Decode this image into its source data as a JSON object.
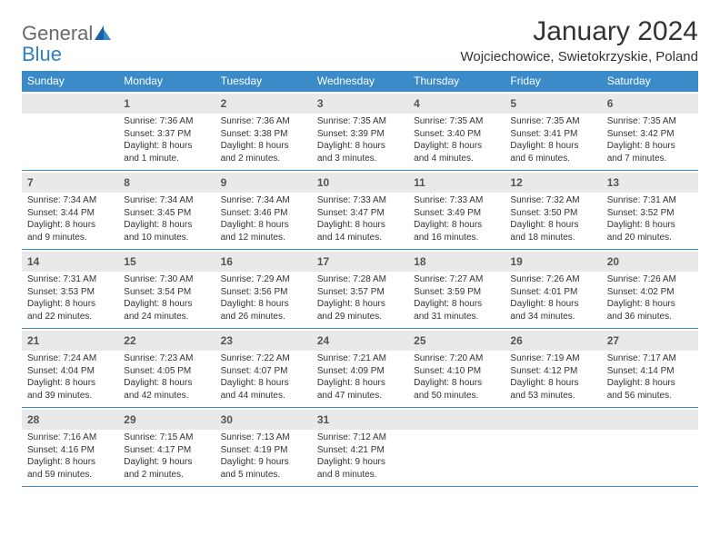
{
  "logo": {
    "general": "General",
    "blue": "Blue"
  },
  "title": "January 2024",
  "location": "Wojciechowice, Swietokrzyskie, Poland",
  "dayHeaders": [
    "Sunday",
    "Monday",
    "Tuesday",
    "Wednesday",
    "Thursday",
    "Friday",
    "Saturday"
  ],
  "colors": {
    "headerBar": "#3b8bc9",
    "dayNumBg": "#e9e9e9",
    "text": "#333333",
    "logoGray": "#6a6a6a",
    "logoBlue": "#2f7fc1"
  },
  "fonts": {
    "title_pt": 30,
    "location_pt": 15,
    "dayhead_pt": 12,
    "daynum_pt": 12,
    "detail_pt": 10
  },
  "weeks": [
    [
      null,
      {
        "n": "1",
        "sr": "Sunrise: 7:36 AM",
        "ss": "Sunset: 3:37 PM",
        "dl1": "Daylight: 8 hours",
        "dl2": "and 1 minute."
      },
      {
        "n": "2",
        "sr": "Sunrise: 7:36 AM",
        "ss": "Sunset: 3:38 PM",
        "dl1": "Daylight: 8 hours",
        "dl2": "and 2 minutes."
      },
      {
        "n": "3",
        "sr": "Sunrise: 7:35 AM",
        "ss": "Sunset: 3:39 PM",
        "dl1": "Daylight: 8 hours",
        "dl2": "and 3 minutes."
      },
      {
        "n": "4",
        "sr": "Sunrise: 7:35 AM",
        "ss": "Sunset: 3:40 PM",
        "dl1": "Daylight: 8 hours",
        "dl2": "and 4 minutes."
      },
      {
        "n": "5",
        "sr": "Sunrise: 7:35 AM",
        "ss": "Sunset: 3:41 PM",
        "dl1": "Daylight: 8 hours",
        "dl2": "and 6 minutes."
      },
      {
        "n": "6",
        "sr": "Sunrise: 7:35 AM",
        "ss": "Sunset: 3:42 PM",
        "dl1": "Daylight: 8 hours",
        "dl2": "and 7 minutes."
      }
    ],
    [
      {
        "n": "7",
        "sr": "Sunrise: 7:34 AM",
        "ss": "Sunset: 3:44 PM",
        "dl1": "Daylight: 8 hours",
        "dl2": "and 9 minutes."
      },
      {
        "n": "8",
        "sr": "Sunrise: 7:34 AM",
        "ss": "Sunset: 3:45 PM",
        "dl1": "Daylight: 8 hours",
        "dl2": "and 10 minutes."
      },
      {
        "n": "9",
        "sr": "Sunrise: 7:34 AM",
        "ss": "Sunset: 3:46 PM",
        "dl1": "Daylight: 8 hours",
        "dl2": "and 12 minutes."
      },
      {
        "n": "10",
        "sr": "Sunrise: 7:33 AM",
        "ss": "Sunset: 3:47 PM",
        "dl1": "Daylight: 8 hours",
        "dl2": "and 14 minutes."
      },
      {
        "n": "11",
        "sr": "Sunrise: 7:33 AM",
        "ss": "Sunset: 3:49 PM",
        "dl1": "Daylight: 8 hours",
        "dl2": "and 16 minutes."
      },
      {
        "n": "12",
        "sr": "Sunrise: 7:32 AM",
        "ss": "Sunset: 3:50 PM",
        "dl1": "Daylight: 8 hours",
        "dl2": "and 18 minutes."
      },
      {
        "n": "13",
        "sr": "Sunrise: 7:31 AM",
        "ss": "Sunset: 3:52 PM",
        "dl1": "Daylight: 8 hours",
        "dl2": "and 20 minutes."
      }
    ],
    [
      {
        "n": "14",
        "sr": "Sunrise: 7:31 AM",
        "ss": "Sunset: 3:53 PM",
        "dl1": "Daylight: 8 hours",
        "dl2": "and 22 minutes."
      },
      {
        "n": "15",
        "sr": "Sunrise: 7:30 AM",
        "ss": "Sunset: 3:54 PM",
        "dl1": "Daylight: 8 hours",
        "dl2": "and 24 minutes."
      },
      {
        "n": "16",
        "sr": "Sunrise: 7:29 AM",
        "ss": "Sunset: 3:56 PM",
        "dl1": "Daylight: 8 hours",
        "dl2": "and 26 minutes."
      },
      {
        "n": "17",
        "sr": "Sunrise: 7:28 AM",
        "ss": "Sunset: 3:57 PM",
        "dl1": "Daylight: 8 hours",
        "dl2": "and 29 minutes."
      },
      {
        "n": "18",
        "sr": "Sunrise: 7:27 AM",
        "ss": "Sunset: 3:59 PM",
        "dl1": "Daylight: 8 hours",
        "dl2": "and 31 minutes."
      },
      {
        "n": "19",
        "sr": "Sunrise: 7:26 AM",
        "ss": "Sunset: 4:01 PM",
        "dl1": "Daylight: 8 hours",
        "dl2": "and 34 minutes."
      },
      {
        "n": "20",
        "sr": "Sunrise: 7:26 AM",
        "ss": "Sunset: 4:02 PM",
        "dl1": "Daylight: 8 hours",
        "dl2": "and 36 minutes."
      }
    ],
    [
      {
        "n": "21",
        "sr": "Sunrise: 7:24 AM",
        "ss": "Sunset: 4:04 PM",
        "dl1": "Daylight: 8 hours",
        "dl2": "and 39 minutes."
      },
      {
        "n": "22",
        "sr": "Sunrise: 7:23 AM",
        "ss": "Sunset: 4:05 PM",
        "dl1": "Daylight: 8 hours",
        "dl2": "and 42 minutes."
      },
      {
        "n": "23",
        "sr": "Sunrise: 7:22 AM",
        "ss": "Sunset: 4:07 PM",
        "dl1": "Daylight: 8 hours",
        "dl2": "and 44 minutes."
      },
      {
        "n": "24",
        "sr": "Sunrise: 7:21 AM",
        "ss": "Sunset: 4:09 PM",
        "dl1": "Daylight: 8 hours",
        "dl2": "and 47 minutes."
      },
      {
        "n": "25",
        "sr": "Sunrise: 7:20 AM",
        "ss": "Sunset: 4:10 PM",
        "dl1": "Daylight: 8 hours",
        "dl2": "and 50 minutes."
      },
      {
        "n": "26",
        "sr": "Sunrise: 7:19 AM",
        "ss": "Sunset: 4:12 PM",
        "dl1": "Daylight: 8 hours",
        "dl2": "and 53 minutes."
      },
      {
        "n": "27",
        "sr": "Sunrise: 7:17 AM",
        "ss": "Sunset: 4:14 PM",
        "dl1": "Daylight: 8 hours",
        "dl2": "and 56 minutes."
      }
    ],
    [
      {
        "n": "28",
        "sr": "Sunrise: 7:16 AM",
        "ss": "Sunset: 4:16 PM",
        "dl1": "Daylight: 8 hours",
        "dl2": "and 59 minutes."
      },
      {
        "n": "29",
        "sr": "Sunrise: 7:15 AM",
        "ss": "Sunset: 4:17 PM",
        "dl1": "Daylight: 9 hours",
        "dl2": "and 2 minutes."
      },
      {
        "n": "30",
        "sr": "Sunrise: 7:13 AM",
        "ss": "Sunset: 4:19 PM",
        "dl1": "Daylight: 9 hours",
        "dl2": "and 5 minutes."
      },
      {
        "n": "31",
        "sr": "Sunrise: 7:12 AM",
        "ss": "Sunset: 4:21 PM",
        "dl1": "Daylight: 9 hours",
        "dl2": "and 8 minutes."
      },
      null,
      null,
      null
    ]
  ]
}
